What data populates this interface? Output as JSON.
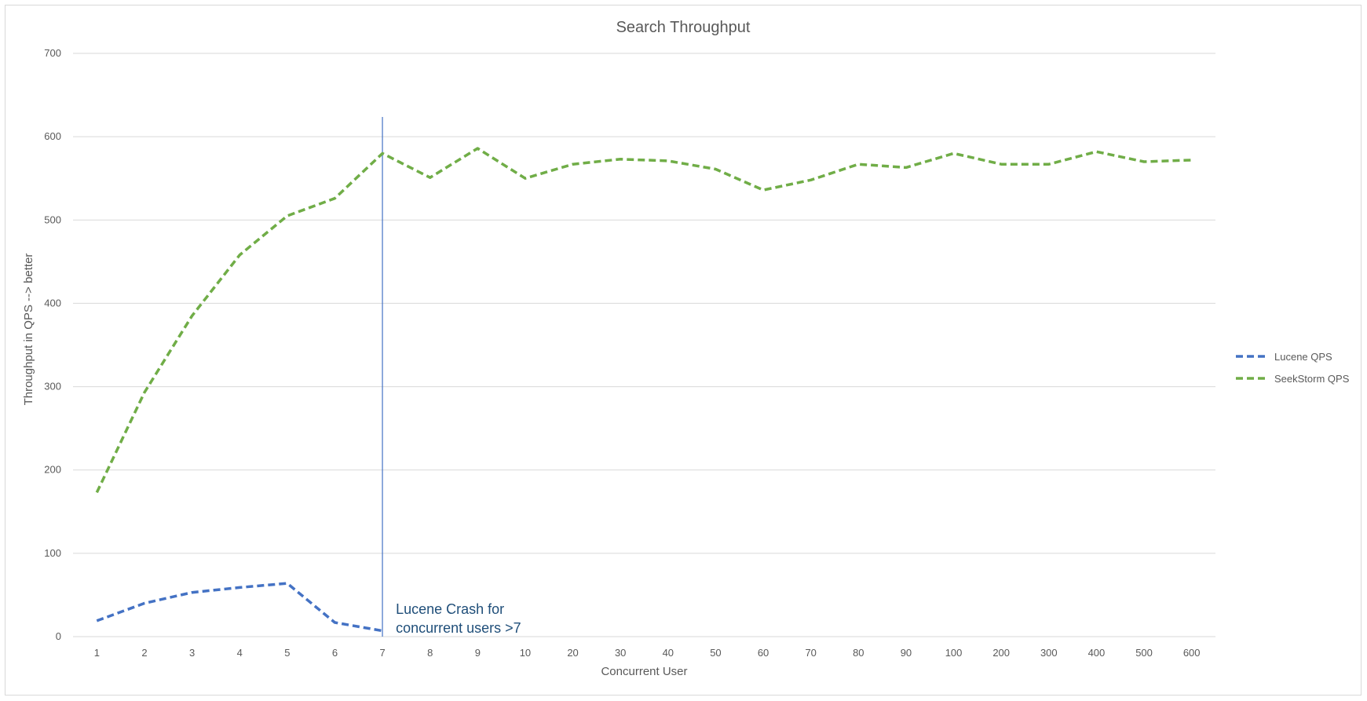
{
  "chart_data": {
    "type": "line",
    "title": "Search Throughput",
    "xlabel": "Concurrent User",
    "ylabel": "Throughput in QPS --> better",
    "categories": [
      "1",
      "2",
      "3",
      "4",
      "5",
      "6",
      "7",
      "8",
      "9",
      "10",
      "20",
      "30",
      "40",
      "50",
      "60",
      "70",
      "80",
      "90",
      "100",
      "200",
      "300",
      "400",
      "500",
      "600"
    ],
    "ylim": [
      0,
      700
    ],
    "yticks": [
      0,
      100,
      200,
      300,
      400,
      500,
      600,
      700
    ],
    "grid": true,
    "legend_position": "right",
    "series": [
      {
        "name": "Lucene QPS",
        "color": "#4472c4",
        "line_style": "dashed",
        "values": [
          19,
          40,
          53,
          59,
          64,
          17,
          7,
          null,
          null,
          null,
          null,
          null,
          null,
          null,
          null,
          null,
          null,
          null,
          null,
          null,
          null,
          null,
          null,
          null
        ]
      },
      {
        "name": "SeekStorm QPS",
        "color": "#70ad47",
        "line_style": "dashed",
        "values": [
          173,
          293,
          385,
          458,
          505,
          526,
          580,
          551,
          586,
          550,
          567,
          573,
          571,
          561,
          536,
          548,
          567,
          563,
          580,
          567,
          567,
          582,
          570,
          572
        ]
      }
    ],
    "annotations": [
      {
        "type": "vertical-line",
        "at_category": "7",
        "color": "#4472c4",
        "text_lines": [
          "Lucene Crash for",
          "concurrent users >7"
        ],
        "text_color": "#1f4e79"
      }
    ]
  }
}
